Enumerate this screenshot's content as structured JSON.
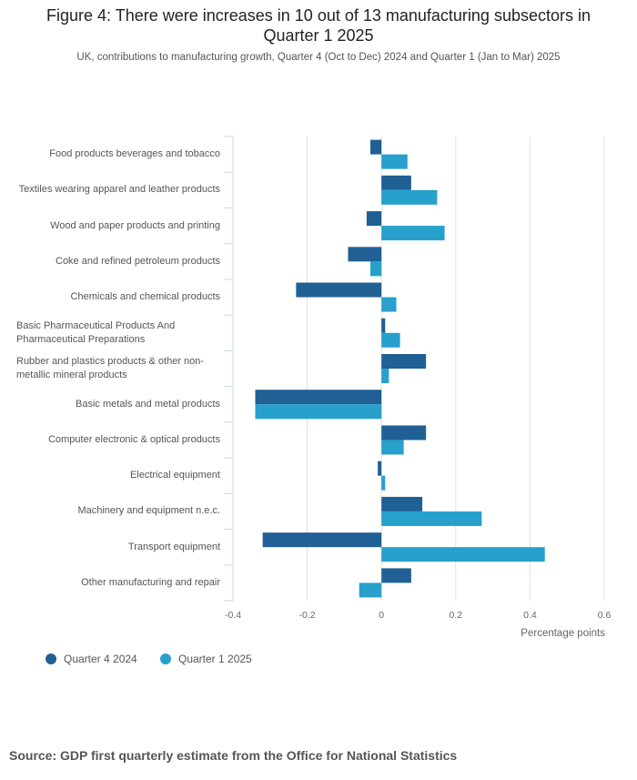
{
  "title": "Figure 4: There were increases in 10 out of 13 manufacturing subsectors in Quarter 1 2025",
  "subtitle": "UK, contributions to manufacturing growth, Quarter 4 (Oct to Dec) 2024 and Quarter 1 (Jan to Mar) 2025",
  "source": "Source: GDP first quarterly estimate from the Office for National Statistics",
  "chart_data": {
    "type": "bar",
    "orientation": "horizontal",
    "title": "Figure 4: There were increases in 10 out of 13 manufacturing subsectors in Quarter 1 2025",
    "xlabel": "Percentage points",
    "xlim": [
      -0.4,
      0.6
    ],
    "ticks": [
      "-0.4",
      "-0.2",
      "0",
      "0.2",
      "0.4",
      "0.6"
    ],
    "tick_values": [
      -0.4,
      -0.2,
      0,
      0.2,
      0.4,
      0.6
    ],
    "grid": true,
    "legend_position": "bottom-left",
    "categories": [
      "Food products beverages and tobacco",
      "Textiles wearing apparel and leather products",
      "Wood and paper products and printing",
      "Coke and refined petroleum products",
      "Chemicals and chemical products",
      "Basic Pharmaceutical Products And Pharmaceutical Preparations",
      "Rubber and plastics products & other non-metallic mineral products",
      "Basic metals and metal products",
      "Computer electronic & optical products",
      "Electrical equipment",
      "Machinery and equipment n.e.c.",
      "Transport equipment",
      "Other manufacturing and repair"
    ],
    "series": [
      {
        "name": "Quarter 4 2024",
        "color": "#206095",
        "values": [
          -0.03,
          0.08,
          -0.04,
          -0.09,
          -0.23,
          0.01,
          0.12,
          -0.34,
          0.12,
          -0.01,
          0.11,
          -0.32,
          0.08
        ]
      },
      {
        "name": "Quarter 1 2025",
        "color": "#27a0cc",
        "values": [
          0.07,
          0.15,
          0.17,
          -0.03,
          0.04,
          0.05,
          0.02,
          -0.34,
          0.06,
          0.01,
          0.27,
          0.44,
          -0.06
        ]
      }
    ]
  }
}
